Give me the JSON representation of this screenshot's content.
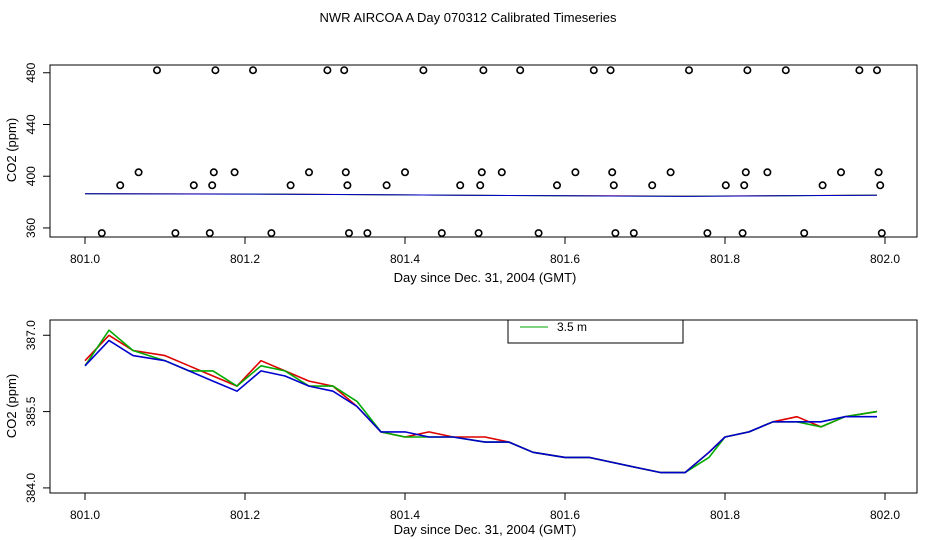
{
  "title": "NWR AIRCOA A  Day 070312  Calibrated Timeseries",
  "colors": {
    "red": "#dd0000",
    "green": "#00aa00",
    "blue": "#0000cc",
    "axis": "#000000"
  },
  "chart_data": [
    {
      "type": "scatter",
      "xlabel": "Day since Dec. 31, 2004 (GMT)",
      "ylabel": "CO2 (ppm)",
      "xlim": [
        801.0,
        802.0
      ],
      "ylim": [
        353,
        486
      ],
      "xticks": [
        "801.0",
        "801.2",
        "801.4",
        "801.6",
        "801.8",
        "802.0"
      ],
      "yticks": [
        "360",
        "400",
        "440",
        "480"
      ],
      "points": [
        [
          801.021,
          356
        ],
        [
          801.044,
          393
        ],
        [
          801.067,
          403
        ],
        [
          801.09,
          482
        ],
        [
          801.113,
          356
        ],
        [
          801.136,
          393
        ],
        [
          801.156,
          356
        ],
        [
          801.159,
          393
        ],
        [
          801.161,
          403
        ],
        [
          801.163,
          482
        ],
        [
          801.187,
          403
        ],
        [
          801.21,
          482
        ],
        [
          801.233,
          356
        ],
        [
          801.257,
          393
        ],
        [
          801.28,
          403
        ],
        [
          801.303,
          482
        ],
        [
          801.324,
          482
        ],
        [
          801.326,
          403
        ],
        [
          801.328,
          393
        ],
        [
          801.33,
          356
        ],
        [
          801.353,
          356
        ],
        [
          801.377,
          393
        ],
        [
          801.4,
          403
        ],
        [
          801.423,
          482
        ],
        [
          801.446,
          356
        ],
        [
          801.469,
          393
        ],
        [
          801.492,
          356
        ],
        [
          801.494,
          393
        ],
        [
          801.496,
          403
        ],
        [
          801.498,
          482
        ],
        [
          801.521,
          403
        ],
        [
          801.544,
          482
        ],
        [
          801.567,
          356
        ],
        [
          801.59,
          393
        ],
        [
          801.613,
          403
        ],
        [
          801.636,
          482
        ],
        [
          801.657,
          482
        ],
        [
          801.659,
          403
        ],
        [
          801.661,
          393
        ],
        [
          801.663,
          356
        ],
        [
          801.686,
          356
        ],
        [
          801.709,
          393
        ],
        [
          801.732,
          403
        ],
        [
          801.755,
          482
        ],
        [
          801.778,
          356
        ],
        [
          801.801,
          393
        ],
        [
          801.822,
          356
        ],
        [
          801.824,
          393
        ],
        [
          801.826,
          403
        ],
        [
          801.828,
          482
        ],
        [
          801.853,
          403
        ],
        [
          801.876,
          482
        ],
        [
          801.899,
          356
        ],
        [
          801.922,
          393
        ],
        [
          801.945,
          403
        ],
        [
          801.968,
          482
        ],
        [
          801.99,
          482
        ],
        [
          801.992,
          403
        ],
        [
          801.994,
          393
        ],
        [
          801.996,
          356
        ]
      ],
      "series": [
        {
          "color": "#dd0000",
          "x": [
            801.0,
            801.25,
            801.5,
            801.75,
            801.99
          ],
          "y": [
            386.5,
            386.2,
            385.2,
            384.6,
            385.4
          ]
        },
        {
          "color": "#00aa00",
          "x": [
            801.0,
            801.25,
            801.5,
            801.75,
            801.99
          ],
          "y": [
            386.4,
            386.1,
            385.2,
            384.5,
            385.4
          ]
        },
        {
          "color": "#0000cc",
          "x": [
            801.0,
            801.25,
            801.5,
            801.75,
            801.99
          ],
          "y": [
            386.4,
            386.1,
            385.2,
            384.4,
            385.3
          ]
        }
      ]
    },
    {
      "type": "line",
      "xlabel": "Day since Dec. 31, 2004 (GMT)",
      "ylabel": "CO2 (ppm)",
      "xlim": [
        801.0,
        802.0
      ],
      "ylim": [
        383.9,
        387.3
      ],
      "xticks": [
        "801.0",
        "801.2",
        "801.4",
        "801.6",
        "801.8",
        "802.0"
      ],
      "yticks": [
        "384.0",
        "385.5",
        "387.0"
      ],
      "legend": {
        "position": "top-center",
        "entries": [
          "3.5 m"
        ]
      },
      "series": [
        {
          "color": "#dd0000",
          "x": [
            801.0,
            801.03,
            801.06,
            801.1,
            801.13,
            801.16,
            801.19,
            801.22,
            801.25,
            801.28,
            801.31,
            801.34,
            801.37,
            801.4,
            801.43,
            801.46,
            801.5,
            801.53,
            801.56,
            801.6,
            801.63,
            801.66,
            801.69,
            801.72,
            801.75,
            801.78,
            801.8,
            801.83,
            801.86,
            801.89,
            801.92,
            801.95,
            801.99
          ],
          "y": [
            386.5,
            387.0,
            386.7,
            386.6,
            386.4,
            386.2,
            386.0,
            386.5,
            386.3,
            386.1,
            386.0,
            385.6,
            385.1,
            385.0,
            385.1,
            385.0,
            385.0,
            384.9,
            384.7,
            384.6,
            384.6,
            384.5,
            384.4,
            384.3,
            384.3,
            384.7,
            385.0,
            385.1,
            385.3,
            385.4,
            385.2,
            385.4,
            385.5
          ]
        },
        {
          "color": "#00aa00",
          "x": [
            801.0,
            801.03,
            801.06,
            801.1,
            801.13,
            801.16,
            801.19,
            801.22,
            801.25,
            801.28,
            801.31,
            801.34,
            801.37,
            801.4,
            801.43,
            801.46,
            801.5,
            801.53,
            801.56,
            801.6,
            801.63,
            801.66,
            801.69,
            801.72,
            801.75,
            801.78,
            801.8,
            801.83,
            801.86,
            801.89,
            801.92,
            801.95,
            801.99
          ],
          "y": [
            386.4,
            387.1,
            386.7,
            386.5,
            386.3,
            386.3,
            386.0,
            386.4,
            386.3,
            386.0,
            386.0,
            385.7,
            385.1,
            385.0,
            385.0,
            385.0,
            384.9,
            384.9,
            384.7,
            384.6,
            384.6,
            384.5,
            384.4,
            384.3,
            384.3,
            384.6,
            385.0,
            385.1,
            385.3,
            385.3,
            385.2,
            385.4,
            385.5
          ]
        },
        {
          "color": "#0000cc",
          "x": [
            801.0,
            801.03,
            801.06,
            801.1,
            801.13,
            801.16,
            801.19,
            801.22,
            801.25,
            801.28,
            801.31,
            801.34,
            801.37,
            801.4,
            801.43,
            801.46,
            801.5,
            801.53,
            801.56,
            801.6,
            801.63,
            801.66,
            801.69,
            801.72,
            801.75,
            801.78,
            801.8,
            801.83,
            801.86,
            801.89,
            801.92,
            801.95,
            801.99
          ],
          "y": [
            386.4,
            386.9,
            386.6,
            386.5,
            386.3,
            386.1,
            385.9,
            386.3,
            386.2,
            386.0,
            385.9,
            385.6,
            385.1,
            385.1,
            385.0,
            385.0,
            384.9,
            384.9,
            384.7,
            384.6,
            384.6,
            384.5,
            384.4,
            384.3,
            384.3,
            384.7,
            385.0,
            385.1,
            385.3,
            385.3,
            385.3,
            385.4,
            385.4
          ]
        }
      ]
    }
  ]
}
